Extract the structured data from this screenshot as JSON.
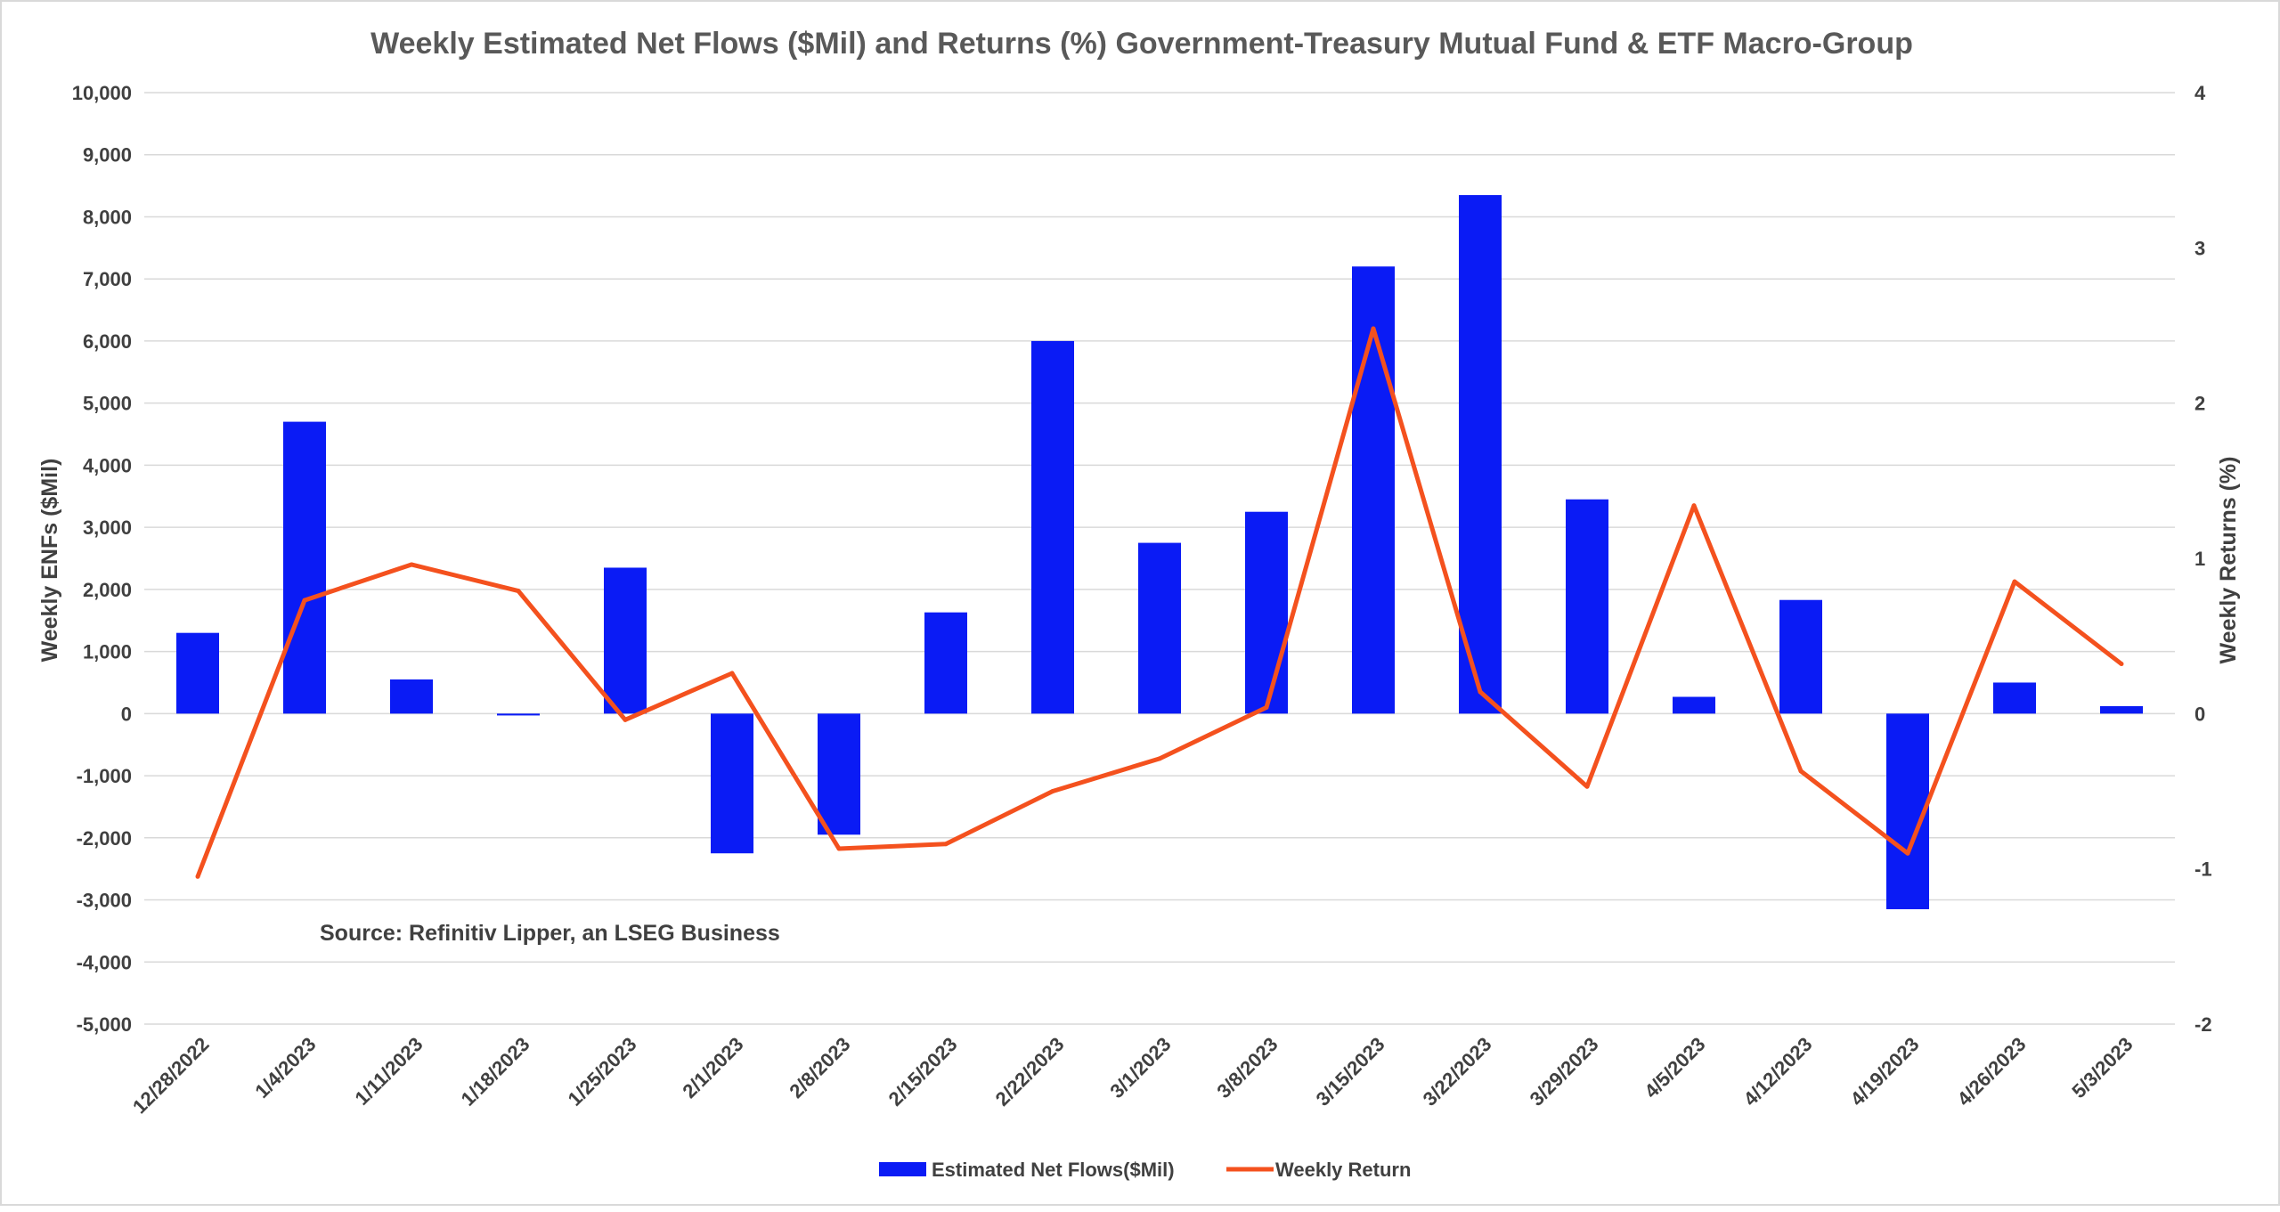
{
  "chart_data": {
    "type": "bar+line",
    "title": "Weekly Estimated Net Flows ($Mil) and Returns (%) Government-Treasury Mutual Fund & ETF Macro-Group",
    "categories": [
      "12/28/2022",
      "1/4/2023",
      "1/11/2023",
      "1/18/2023",
      "1/25/2023",
      "2/1/2023",
      "2/8/2023",
      "2/15/2023",
      "2/22/2023",
      "3/1/2023",
      "3/8/2023",
      "3/15/2023",
      "3/22/2023",
      "3/29/2023",
      "4/5/2023",
      "4/12/2023",
      "4/19/2023",
      "4/26/2023",
      "5/3/2023"
    ],
    "series": [
      {
        "name": "Estimated Net Flows($Mil)",
        "type": "bar",
        "axis": "left",
        "color": "#0a1bf5",
        "values": [
          1300,
          4700,
          550,
          -30,
          2350,
          -2250,
          -1950,
          1630,
          6000,
          2750,
          3250,
          7200,
          8350,
          3450,
          270,
          1830,
          -3150,
          500,
          120
        ]
      },
      {
        "name": "Weekly Return",
        "type": "line",
        "axis": "right",
        "color": "#f4511e",
        "values": [
          -1.05,
          0.73,
          0.96,
          0.79,
          -0.04,
          0.26,
          -0.87,
          -0.84,
          -0.5,
          -0.29,
          0.04,
          2.48,
          0.14,
          -0.47,
          1.34,
          -0.37,
          -0.9,
          0.85,
          0.32
        ]
      }
    ],
    "y_left": {
      "label": "Weekly ENFs ($Mil)",
      "lim": [
        -5000,
        10000
      ],
      "ticks": [
        -5000,
        -4000,
        -3000,
        -2000,
        -1000,
        0,
        1000,
        2000,
        3000,
        4000,
        5000,
        6000,
        7000,
        8000,
        9000,
        10000
      ],
      "tick_labels": [
        "-5,000",
        "-4,000",
        "-3,000",
        "-2,000",
        "-1,000",
        "0",
        "1,000",
        "2,000",
        "3,000",
        "4,000",
        "5,000",
        "6,000",
        "7,000",
        "8,000",
        "9,000",
        "10,000"
      ]
    },
    "y_right": {
      "label": "Weekly Returns (%)",
      "lim": [
        -2,
        4
      ],
      "ticks": [
        -2,
        -1,
        0,
        1,
        2,
        3,
        4
      ],
      "tick_labels": [
        "-2",
        "-1",
        "0",
        "1",
        "2",
        "3",
        "4"
      ]
    },
    "grid": true,
    "legend_position": "bottom-center",
    "annotation": "Source: Refinitiv Lipper, an LSEG Business"
  }
}
